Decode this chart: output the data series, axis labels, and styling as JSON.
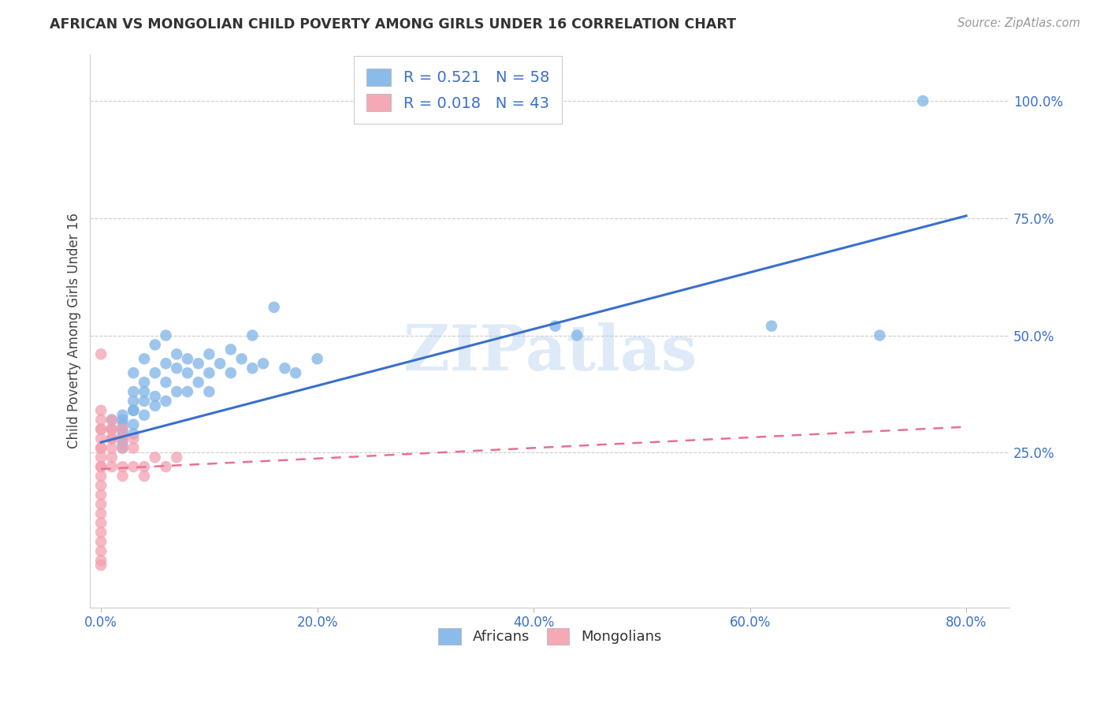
{
  "title": "AFRICAN VS MONGOLIAN CHILD POVERTY AMONG GIRLS UNDER 16 CORRELATION CHART",
  "source": "Source: ZipAtlas.com",
  "ylabel": "Child Poverty Among Girls Under 16",
  "x_tick_labels": [
    "0.0%",
    "20.0%",
    "40.0%",
    "60.0%",
    "80.0%"
  ],
  "x_tick_values": [
    0.0,
    0.2,
    0.4,
    0.6,
    0.8
  ],
  "y_tick_labels": [
    "25.0%",
    "50.0%",
    "75.0%",
    "100.0%"
  ],
  "y_tick_values": [
    0.25,
    0.5,
    0.75,
    1.0
  ],
  "xlim": [
    -0.01,
    0.84
  ],
  "ylim": [
    -0.08,
    1.1
  ],
  "african_color": "#7EB4E8",
  "mongolian_color": "#F4A0B0",
  "african_line_color": "#3A6FCC",
  "mongolian_line_color": "#E87090",
  "legend_R_african": "R = 0.521",
  "legend_N_african": "N = 58",
  "legend_R_mongolian": "R = 0.018",
  "legend_N_mongolian": "N = 43",
  "watermark": "ZIPatlas",
  "african_x": [
    0.01,
    0.01,
    0.01,
    0.02,
    0.02,
    0.02,
    0.02,
    0.02,
    0.02,
    0.02,
    0.02,
    0.03,
    0.03,
    0.03,
    0.03,
    0.03,
    0.03,
    0.03,
    0.04,
    0.04,
    0.04,
    0.04,
    0.04,
    0.05,
    0.05,
    0.05,
    0.05,
    0.06,
    0.06,
    0.06,
    0.06,
    0.07,
    0.07,
    0.07,
    0.08,
    0.08,
    0.08,
    0.09,
    0.09,
    0.1,
    0.1,
    0.1,
    0.11,
    0.12,
    0.12,
    0.13,
    0.14,
    0.14,
    0.15,
    0.16,
    0.17,
    0.18,
    0.2,
    0.42,
    0.44,
    0.62,
    0.72,
    0.76
  ],
  "african_y": [
    0.28,
    0.3,
    0.32,
    0.27,
    0.3,
    0.32,
    0.28,
    0.33,
    0.29,
    0.31,
    0.26,
    0.34,
    0.29,
    0.36,
    0.31,
    0.38,
    0.34,
    0.42,
    0.36,
    0.33,
    0.4,
    0.45,
    0.38,
    0.37,
    0.42,
    0.35,
    0.48,
    0.4,
    0.36,
    0.44,
    0.5,
    0.38,
    0.43,
    0.46,
    0.42,
    0.45,
    0.38,
    0.44,
    0.4,
    0.42,
    0.38,
    0.46,
    0.44,
    0.42,
    0.47,
    0.45,
    0.43,
    0.5,
    0.44,
    0.56,
    0.43,
    0.42,
    0.45,
    0.52,
    0.5,
    0.52,
    0.5,
    1.0
  ],
  "mongolian_x": [
    0.0,
    0.0,
    0.0,
    0.0,
    0.0,
    0.0,
    0.0,
    0.0,
    0.0,
    0.0,
    0.0,
    0.0,
    0.0,
    0.0,
    0.0,
    0.0,
    0.0,
    0.0,
    0.0,
    0.0,
    0.0,
    0.0,
    0.01,
    0.01,
    0.01,
    0.01,
    0.01,
    0.01,
    0.01,
    0.01,
    0.02,
    0.02,
    0.02,
    0.02,
    0.02,
    0.03,
    0.03,
    0.03,
    0.04,
    0.04,
    0.05,
    0.06,
    0.07
  ],
  "mongolian_y": [
    0.46,
    0.34,
    0.32,
    0.3,
    0.28,
    0.26,
    0.24,
    0.22,
    0.2,
    0.18,
    0.16,
    0.14,
    0.12,
    0.1,
    0.08,
    0.06,
    0.04,
    0.02,
    0.01,
    0.22,
    0.26,
    0.3,
    0.28,
    0.3,
    0.32,
    0.26,
    0.28,
    0.24,
    0.22,
    0.3,
    0.28,
    0.26,
    0.22,
    0.3,
    0.2,
    0.26,
    0.22,
    0.28,
    0.2,
    0.22,
    0.24,
    0.22,
    0.24
  ],
  "african_line_x0": 0.0,
  "african_line_y0": 0.272,
  "african_line_x1": 0.8,
  "african_line_y1": 0.755,
  "mongolian_line_x0": 0.0,
  "mongolian_line_y0": 0.215,
  "mongolian_line_x1": 0.8,
  "mongolian_line_y1": 0.305
}
